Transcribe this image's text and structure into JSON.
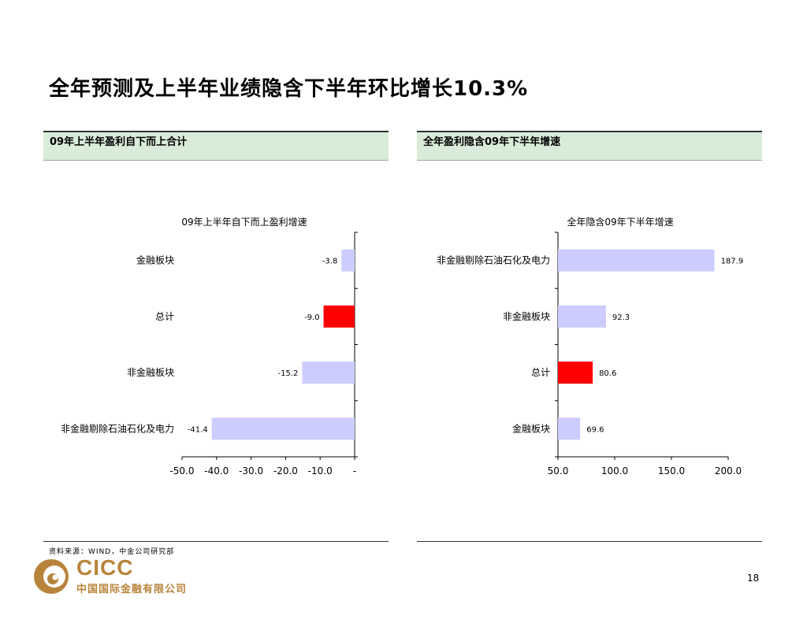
{
  "title": "全年预测及上半年业绩隐含下半年环比增长10.3%",
  "panels": {
    "left_header": "09年上半年盈利自下而上合计",
    "right_header": "全年盈利隐含09年下半年增速"
  },
  "chart_data": [
    {
      "type": "bar",
      "orientation": "horizontal",
      "title": "09年上半年自下而上盈利增速",
      "categories": [
        "金融板块",
        "总计",
        "非金融板块",
        "非金融剔除石油石化及电力"
      ],
      "values": [
        -3.8,
        -9.0,
        -15.2,
        -41.4
      ],
      "value_labels": [
        "-3.8",
        "-9.0",
        "-15.2",
        "-41.4"
      ],
      "highlight": [
        false,
        true,
        false,
        false
      ],
      "xlim": [
        -50,
        0
      ],
      "xticks": [
        -50,
        -40,
        -30,
        -20,
        -10,
        0
      ],
      "xtick_labels": [
        "-50.0",
        "-40.0",
        "-30.0",
        "-20.0",
        "-10.0",
        "-"
      ],
      "colors": {
        "bar": "#ccccff",
        "highlight": "#ff0000"
      }
    },
    {
      "type": "bar",
      "orientation": "horizontal",
      "title": "全年隐含09年下半年增速",
      "categories": [
        "非金融剔除石油石化及电力",
        "非金融板块",
        "总计",
        "金融板块"
      ],
      "values": [
        187.9,
        92.3,
        80.6,
        69.6
      ],
      "value_labels": [
        "187.9",
        "92.3",
        "80.6",
        "69.6"
      ],
      "highlight": [
        false,
        false,
        true,
        false
      ],
      "xlim": [
        50,
        200
      ],
      "xticks": [
        50,
        100,
        150,
        200
      ],
      "xtick_labels": [
        "50.0",
        "100.0",
        "150.0",
        "200.0"
      ],
      "colors": {
        "bar": "#ccccff",
        "highlight": "#ff0000"
      }
    }
  ],
  "footer": {
    "source": "资料来源：WIND，中金公司研究部",
    "logo_text": "CICC",
    "logo_subtext": "中国国际金融有限公司",
    "page_number": "18"
  }
}
